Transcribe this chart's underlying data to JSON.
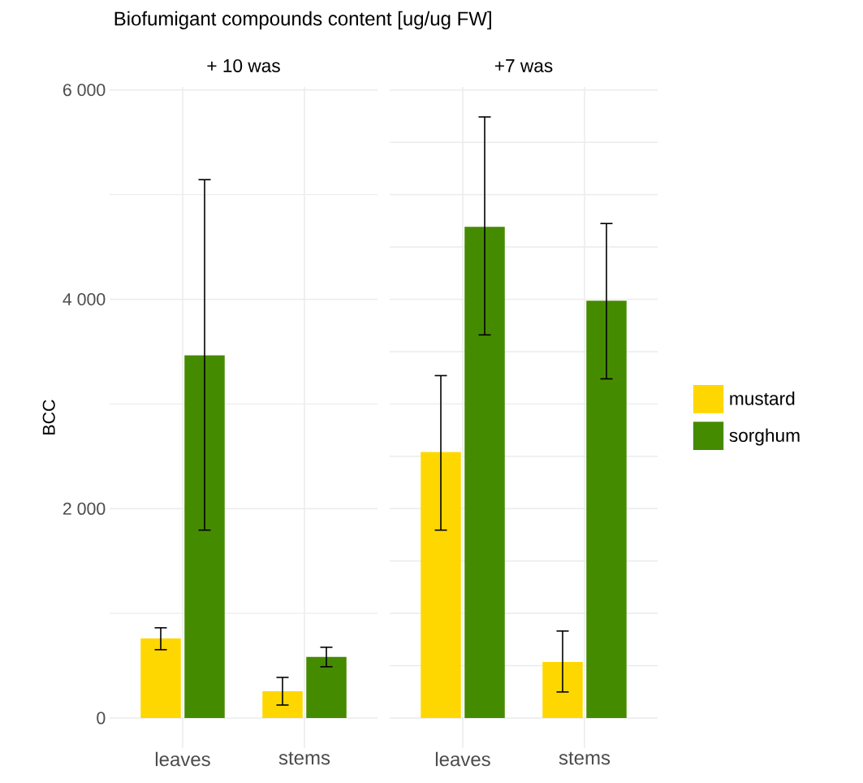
{
  "chart_data": [
    {
      "type": "bar",
      "title": "+ 10 was",
      "annotations": [
        "Biofumigant compounds content [ug/ug FW]"
      ],
      "ylabel": "BCC",
      "categories": [
        "leaves",
        "stems"
      ],
      "series": [
        {
          "color": "#ffd700",
          "values": [
            760,
            256
          ],
          "errors": [
            [
              653,
              862
            ],
            [
              124,
              388
            ]
          ]
        },
        {
          "color": "#458b00",
          "values": [
            3465,
            583
          ],
          "errors": [
            [
              1795,
              5143
            ],
            [
              490,
              676
            ]
          ]
        }
      ],
      "ylim": [
        -287,
        6029
      ],
      "yticks": [
        0,
        {
          "value": 1000,
          "label": null
        },
        {
          "value": 2000,
          "label": "2 000"
        },
        {
          "value": 3000,
          "label": null
        },
        {
          "value": 4000,
          "label": "4 000"
        },
        {
          "value": 5000,
          "label": null
        },
        {
          "value": 6000,
          "label": "6 000"
        }
      ],
      "grid": true
    },
    {
      "type": "bar",
      "title": "+7 was",
      "categories": [
        "leaves",
        "stems"
      ],
      "series": [
        {
          "name": "mustard",
          "color": "#ffd700",
          "values": [
            2541,
            536
          ],
          "errors": [
            [
              1795,
              3271
            ],
            [
              249,
              831
            ]
          ]
        },
        {
          "name": "sorghum",
          "color": "#458b00",
          "values": [
            4693,
            3986
          ],
          "errors": [
            [
              3660,
              5742
            ],
            [
              3240,
              4724
            ]
          ]
        }
      ],
      "ylim": [
        -287,
        6029
      ],
      "yticks": [
        {
          "value": 0,
          "label": null
        },
        {
          "value": 1000,
          "label": null
        },
        {
          "value": 2000,
          "label": null
        },
        {
          "value": 3000,
          "label": null
        },
        {
          "value": 4000,
          "label": null
        },
        {
          "value": 5000,
          "label": null
        },
        {
          "value": 6000,
          "label": null
        }
      ],
      "grid": true,
      "legend": "right",
      "tick_labels": "x"
    }
  ]
}
